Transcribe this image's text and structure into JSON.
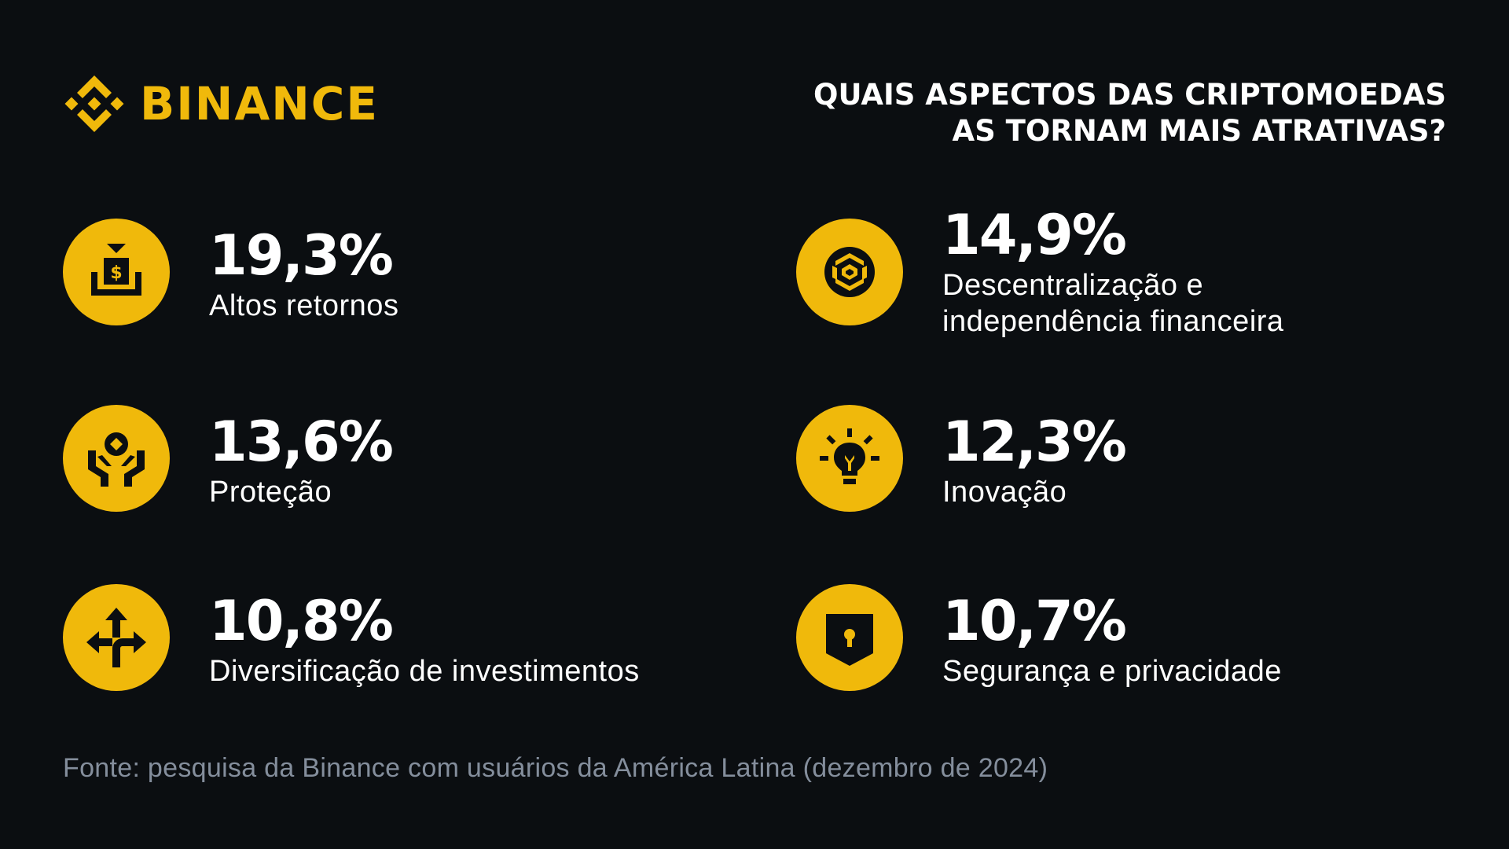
{
  "brand": {
    "name": "BINANCE",
    "color": "#f0b90b",
    "icon": "binance-diamond-icon"
  },
  "headline": {
    "line1": "QUAIS ASPECTOS DAS CRIPTOMOEDAS",
    "line2": "AS TORNAM MAIS ATRATIVAS?"
  },
  "items": [
    {
      "percent": "19,3%",
      "label": "Altos retornos",
      "icon": "money-box-icon"
    },
    {
      "percent": "14,9%",
      "label_lines": [
        "Descentralização e",
        "independência financeira"
      ],
      "icon": "bnb-cube-icon"
    },
    {
      "percent": "13,6%",
      "label": "Proteção",
      "icon": "hands-protecting-coin-icon"
    },
    {
      "percent": "12,3%",
      "label": "Inovação",
      "icon": "lightbulb-icon"
    },
    {
      "percent": "10,8%",
      "label": "Diversificação de investimentos",
      "icon": "split-arrows-icon"
    },
    {
      "percent": "10,7%",
      "label": "Segurança e privacidade",
      "icon": "shield-keyhole-icon"
    }
  ],
  "footer": "Fonte: pesquisa da Binance com usuários da América Latina (dezembro de 2024)",
  "colors": {
    "background": "#0b0e11",
    "accent": "#f0b90b",
    "text": "#ffffff",
    "muted": "#848e9c"
  }
}
